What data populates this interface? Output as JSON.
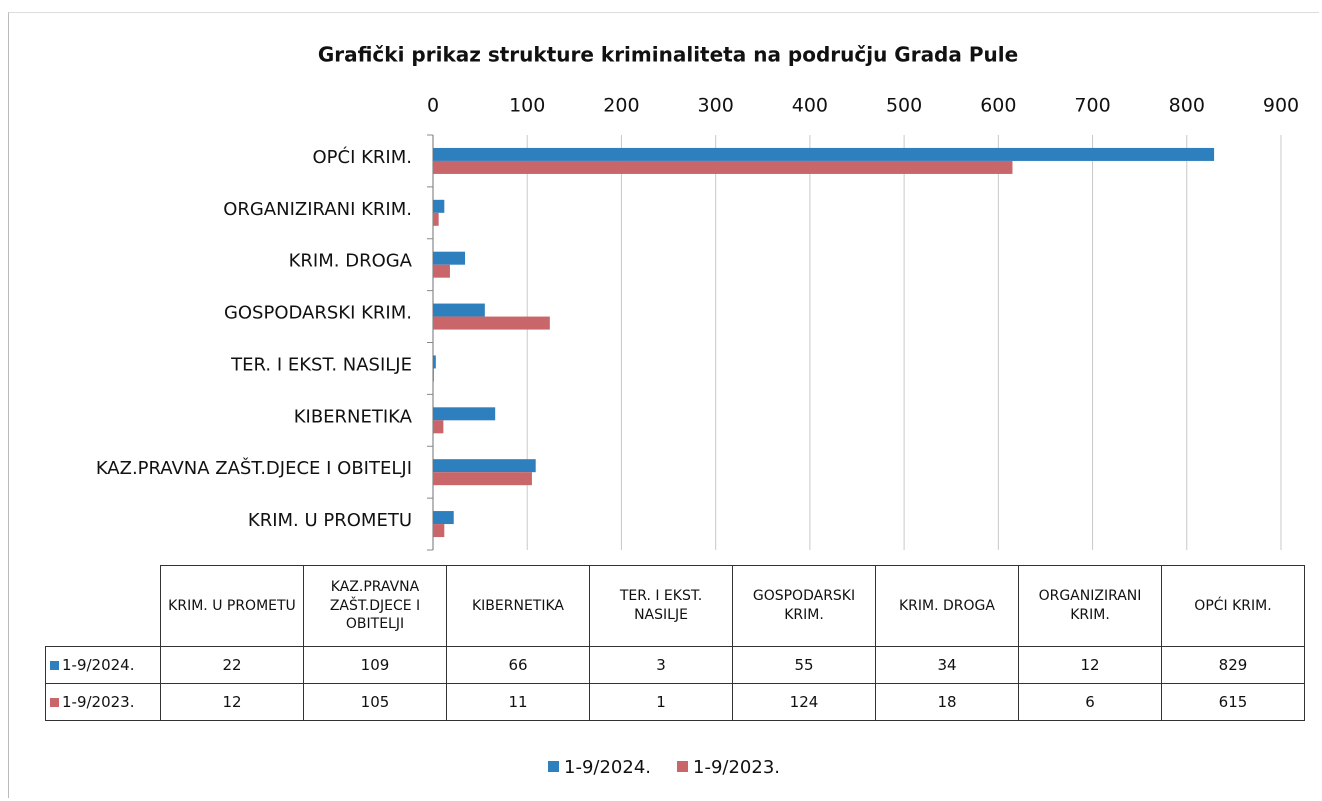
{
  "chart_data": {
    "type": "bar",
    "orientation": "horizontal",
    "title": "Grafički prikaz strukture kriminaliteta na području Grada Pule",
    "categories": [
      "KRIM. U PROMETU",
      "KAZ.PRAVNA ZAŠT.DJECE I OBITELJI",
      "KIBERNETIKA",
      "TER. I EKST. NASILJE",
      "GOSPODARSKI KRIM.",
      "KRIM. DROGA",
      "ORGANIZIRANI KRIM.",
      "OPĆI KRIM."
    ],
    "series": [
      {
        "name": "1-9/2024.",
        "color": "#2e7fbd",
        "values": [
          22,
          109,
          66,
          3,
          55,
          34,
          12,
          829
        ]
      },
      {
        "name": "1-9/2023.",
        "color": "#c9666a",
        "values": [
          12,
          105,
          11,
          1,
          124,
          18,
          6,
          615
        ]
      }
    ],
    "xlim": [
      0,
      900
    ],
    "xticks": [
      0,
      100,
      200,
      300,
      400,
      500,
      600,
      700,
      800,
      900
    ],
    "grid": true,
    "legend": "bottom"
  }
}
